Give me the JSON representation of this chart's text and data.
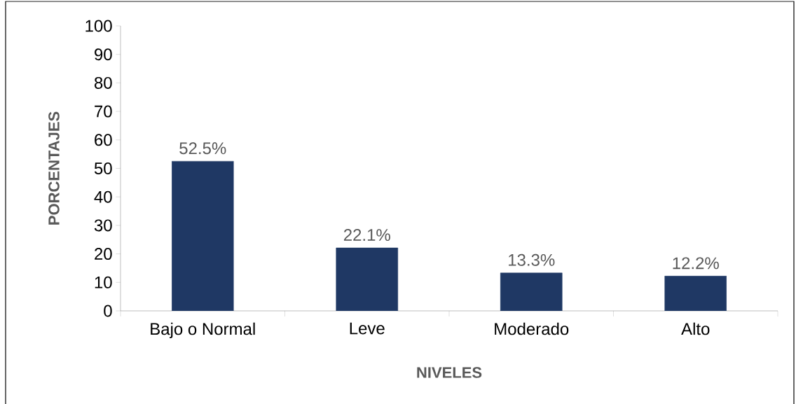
{
  "chart_data": {
    "type": "bar",
    "xlabel": "NIVELES",
    "ylabel": "PORCENTAJES",
    "categories": [
      "Bajo o Normal",
      "Leve",
      "Moderado",
      "Alto"
    ],
    "values": [
      52.5,
      22.1,
      13.3,
      12.2
    ],
    "value_labels": [
      "52.5%",
      "22.1%",
      "13.3%",
      "12.2%"
    ],
    "color": "#1f3864",
    "ylim": [
      0,
      100
    ],
    "yticks": [
      0,
      10,
      20,
      30,
      40,
      50,
      60,
      70,
      80,
      90,
      100
    ],
    "grid": false
  }
}
